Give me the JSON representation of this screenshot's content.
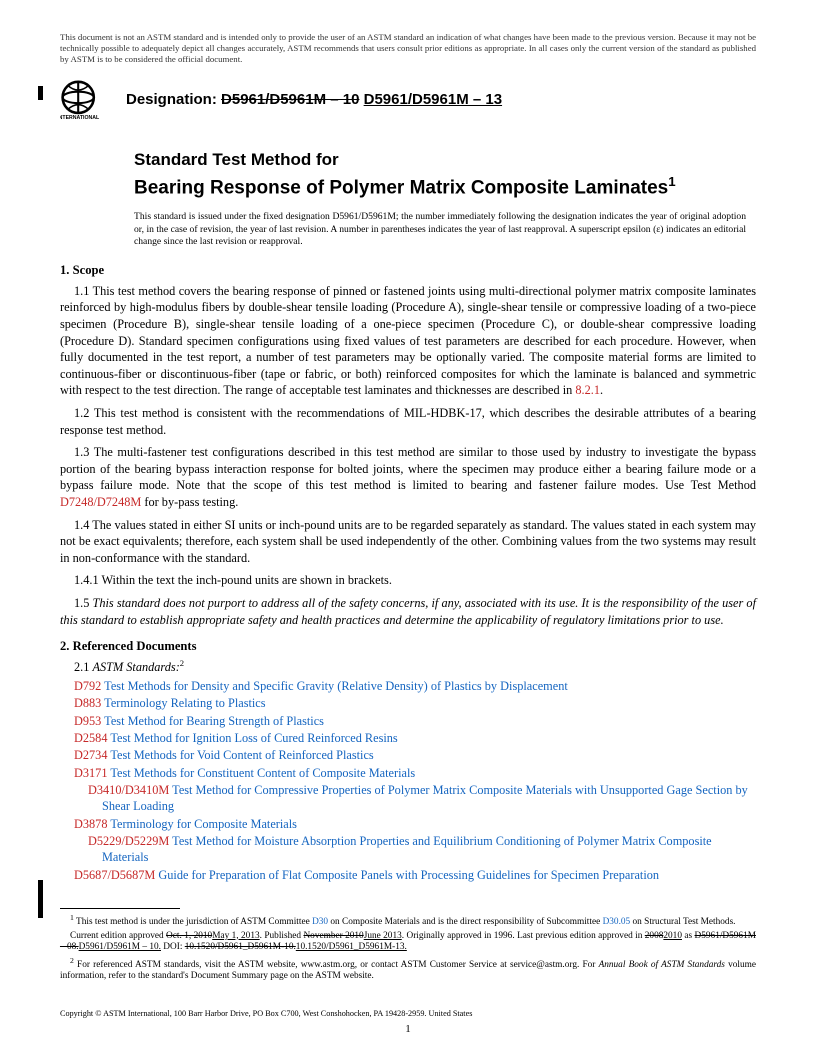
{
  "colors": {
    "text": "#000000",
    "link": "#1565c0",
    "refkey": "#c62828",
    "background": "#ffffff"
  },
  "typography": {
    "body_family": "Times New Roman",
    "heading_family": "Arial",
    "body_size_pt": 10,
    "title_size_pt": 15,
    "disclaimer_size_pt": 7,
    "footnote_size_pt": 7.5
  },
  "disclaimer": "This document is not an ASTM standard and is intended only to provide the user of an ASTM standard an indication of what changes have been made to the previous version. Because it may not be technically possible to adequately depict all changes accurately, ASTM recommends that users consult prior editions as appropriate. In all cases only the current version of the standard as published by ASTM is to be considered the official document.",
  "designation_label": "Designation:",
  "designation_old": "D5961/D5961M – 10",
  "designation_new": "D5961/D5961M – 13",
  "title_line1": "Standard Test Method for",
  "title_line2": "Bearing Response of Polymer Matrix Composite Laminates",
  "title_super": "1",
  "issuance": "This standard is issued under the fixed designation D5961/D5961M; the number immediately following the designation indicates the year of original adoption or, in the case of revision, the year of last revision. A number in parentheses indicates the year of last reapproval. A superscript epsilon (ε) indicates an editorial change since the last revision or reapproval.",
  "sections": {
    "scope": {
      "head": "1. Scope",
      "p11a": "1.1 This test method covers the bearing response of pinned or fastened joints using multi-directional polymer matrix composite laminates reinforced by high-modulus fibers by double-shear tensile loading (Procedure A), single-shear tensile or compressive loading of a two-piece specimen (Procedure B), single-shear tensile loading of a one-piece specimen (Procedure C), or double-shear compressive loading (Procedure D). Standard specimen configurations using fixed values of test parameters are described for each procedure. However, when fully documented in the test report, a number of test parameters may be optionally varied. The composite material forms are limited to continuous-fiber or discontinuous-fiber (tape or fabric, or both) reinforced composites for which the laminate is balanced and symmetric with respect to the test direction. The range of acceptable test laminates and thicknesses are described in ",
      "p11_ref": "8.2.1",
      "p11b": ".",
      "p12": "1.2 This test method is consistent with the recommendations of MIL-HDBK-17, which describes the desirable attributes of a bearing response test method.",
      "p13a": "1.3 The multi-fastener test configurations described in this test method are similar to those used by industry to investigate the bypass portion of the bearing bypass interaction response for bolted joints, where the specimen may produce either a bearing failure mode or a bypass failure mode. Note that the scope of this test method is limited to bearing and fastener failure modes. Use Test Method ",
      "p13_ref": "D7248/D7248M",
      "p13b": " for by-pass testing.",
      "p14": "1.4 The values stated in either SI units or inch-pound units are to be regarded separately as standard. The values stated in each system may not be exact equivalents; therefore, each system shall be used independently of the other. Combining values from the two systems may result in non-conformance with the standard.",
      "p141": "1.4.1 Within the text the inch-pound units are shown in brackets.",
      "p15": "1.5 This standard does not purport to address all of the safety concerns, if any, associated with its use. It is the responsibility of the user of this standard to establish appropriate safety and health practices and determine the applicability of regulatory limitations prior to use."
    },
    "refs": {
      "head": "2. Referenced Documents",
      "sub": "2.1 ASTM Standards:",
      "sub_sup": "2",
      "items": [
        {
          "key": "D792",
          "title": "Test Methods for Density and Specific Gravity (Relative Density) of Plastics by Displacement"
        },
        {
          "key": "D883",
          "title": "Terminology Relating to Plastics"
        },
        {
          "key": "D953",
          "title": "Test Method for Bearing Strength of Plastics"
        },
        {
          "key": "D2584",
          "title": "Test Method for Ignition Loss of Cured Reinforced Resins"
        },
        {
          "key": "D2734",
          "title": "Test Methods for Void Content of Reinforced Plastics"
        },
        {
          "key": "D3171",
          "title": "Test Methods for Constituent Content of Composite Materials"
        },
        {
          "key": "D3410/D3410M",
          "title": "Test Method for Compressive Properties of Polymer Matrix Composite Materials with Unsupported Gage Section by Shear Loading",
          "wrap": true
        },
        {
          "key": "D3878",
          "title": "Terminology for Composite Materials"
        },
        {
          "key": "D5229/D5229M",
          "title": "Test Method for Moisture Absorption Properties and Equilibrium Conditioning of Polymer Matrix Composite Materials",
          "wrap": true
        },
        {
          "key": "D5687/D5687M",
          "title": "Guide for Preparation of Flat Composite Panels with Processing Guidelines for Specimen Preparation"
        }
      ]
    }
  },
  "footnotes": {
    "f1a": " This test method is under the jurisdiction of ASTM Committee ",
    "f1_link1": "D30",
    "f1b": " on Composite Materials and is the direct responsibility of Subcommittee ",
    "f1_link2": "D30.05",
    "f1c": " on Structural Test Methods.",
    "f1d_a": "Current edition approved ",
    "f1d_strike1": "Oct. 1, 2010",
    "f1d_new1": "May 1, 2013",
    "f1d_b": ". Published ",
    "f1d_strike2": "November 2010",
    "f1d_new2": "June 2013",
    "f1d_c": ". Originally approved in 1996. Last previous edition approved in ",
    "f1d_strike3": "2008",
    "f1d_new3": "2010",
    "f1d_d": " as ",
    "f1e_strike": "D5961/D5961M – 08.",
    "f1e_new": "D5961/D5961M – 10.",
    "f1e_b": " DOI: ",
    "f1e_strike2": "10.1520/D5961_D5961M-10.",
    "f1e_new2": "10.1520/D5961_D5961M-13.",
    "f2_sup": "2",
    "f2a": " For referenced ASTM standards, visit the ASTM website, www.astm.org, or contact ASTM Customer Service at service@astm.org. For ",
    "f2_ital": "Annual Book of ASTM Standards",
    "f2b": " volume information, refer to the standard's Document Summary page on the ASTM website."
  },
  "copyright": "Copyright © ASTM International, 100 Barr Harbor Drive, PO Box C700, West Conshohocken, PA 19428-2959. United States",
  "pagenum": "1"
}
